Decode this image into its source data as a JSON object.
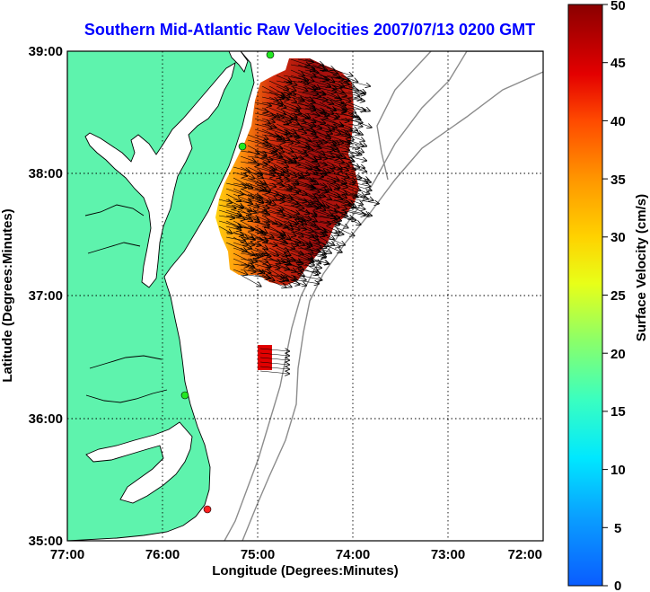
{
  "title": "Southern Mid-Atlantic Raw Velocities 2007/07/13 0200 GMT",
  "x_axis": {
    "label": "Longitude (Degrees:Minutes)",
    "ticks": [
      "77:00",
      "76:00",
      "75:00",
      "74:00",
      "73:00",
      "72:00"
    ]
  },
  "y_axis": {
    "label": "Latitude (Degrees:Minutes)",
    "ticks": [
      "39:00",
      "38:00",
      "37:00",
      "36:00",
      "35:00"
    ]
  },
  "colorbar": {
    "label": "Surface Velocity (cm/s)",
    "ticks": [
      "50",
      "45",
      "40",
      "35",
      "30",
      "25",
      "20",
      "15",
      "10",
      "5",
      "0"
    ],
    "range": [
      0,
      50
    ]
  },
  "colors": {
    "title": "#0000ff",
    "land": "#5ef3ad",
    "coastline": "#000000",
    "bathymetry": "#8c8c8c",
    "grid": "#000000",
    "ocean": "#ffffff"
  },
  "chart_data": {
    "type": "heatmap",
    "title": "Southern Mid-Atlantic Raw Velocities 2007/07/13 0200 GMT",
    "xlabel": "Longitude (Degrees:Minutes)",
    "ylabel": "Latitude (Degrees:Minutes)",
    "xlim": [
      -77.0,
      -72.0
    ],
    "ylim": [
      35.0,
      39.0
    ],
    "grid": true,
    "colorbar_label": "Surface Velocity (cm/s)",
    "colorbar_range": [
      0,
      50
    ],
    "field_region": {
      "lon_range": [
        -75.4,
        -74.0
      ],
      "lat_range": [
        37.2,
        38.95
      ],
      "speed_range_cm_s": [
        25,
        50
      ],
      "dominant_flow": "eastward / slightly southeast"
    },
    "secondary_patch": {
      "lon": -74.95,
      "lat": 36.45,
      "speed_cm_s": 48
    },
    "stations": [
      {
        "lon": -74.87,
        "lat": 38.97,
        "status": "active"
      },
      {
        "lon": -75.15,
        "lat": 38.2,
        "status": "active"
      },
      {
        "lon": -75.78,
        "lat": 36.18,
        "status": "active"
      },
      {
        "lon": -75.52,
        "lat": 35.26,
        "status": "inactive"
      }
    ]
  }
}
